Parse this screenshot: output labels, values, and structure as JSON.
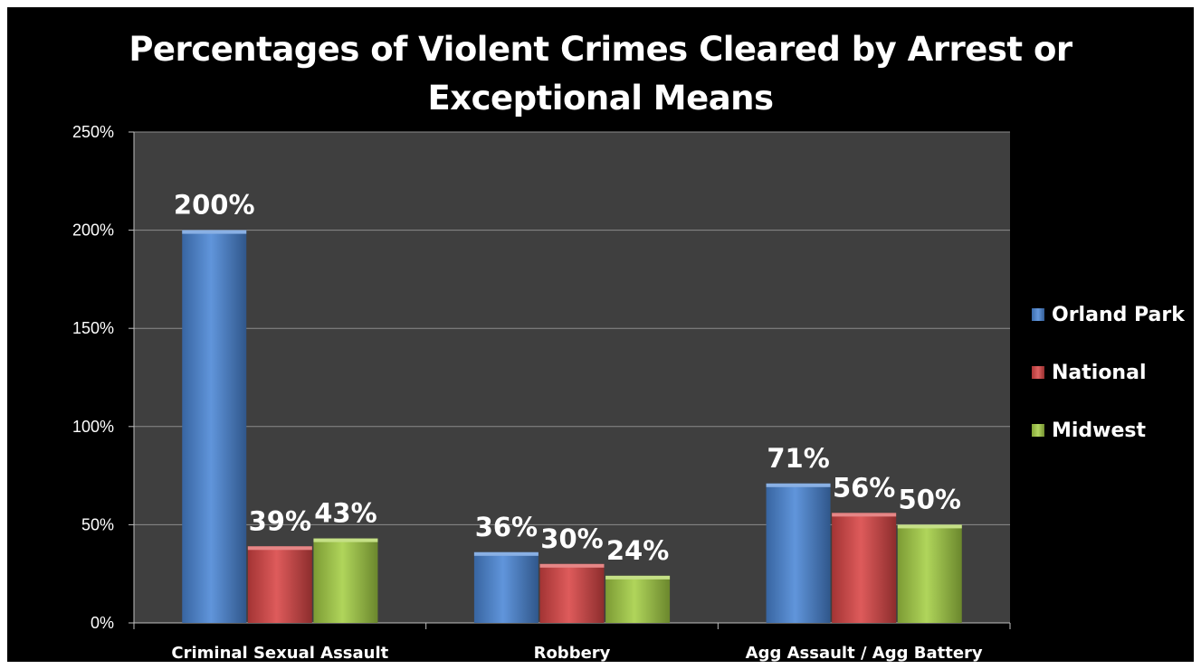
{
  "chart_data": {
    "type": "bar",
    "title": "Percentages of Violent Crimes Cleared by Arrest or\nExceptional Means",
    "categories": [
      "Criminal Sexual Assault",
      "Robbery",
      "Agg Assault / Agg Battery"
    ],
    "series": [
      {
        "name": "Orland Park",
        "values": [
          200,
          36,
          71
        ],
        "labels": [
          "200%",
          "36%",
          "71%"
        ],
        "color": "#4a86d6"
      },
      {
        "name": "National",
        "values": [
          39,
          30,
          56
        ],
        "labels": [
          "39%",
          "30%",
          "56%"
        ],
        "color": "#d94545"
      },
      {
        "name": "Midwest",
        "values": [
          43,
          24,
          50
        ],
        "labels": [
          "43%",
          "24%",
          "50%"
        ],
        "color": "#a5cf45"
      }
    ],
    "yticks": [
      "0%",
      "50%",
      "100%",
      "150%",
      "200%",
      "250%"
    ],
    "ylim": [
      0,
      250
    ],
    "grid": true,
    "legend": "right",
    "plot_background": "#3f3f3f",
    "background": "#000000"
  }
}
